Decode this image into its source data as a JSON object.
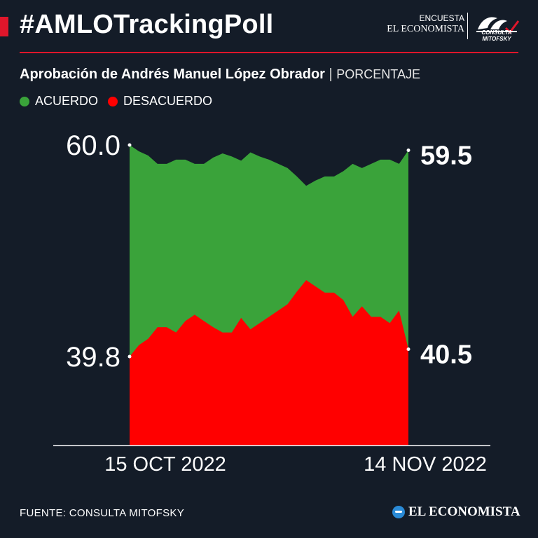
{
  "header": {
    "hashtag": "#AMLOTrackingPoll",
    "brand_top": "ENCUESTA",
    "brand_name": "EL ECONOMISTA",
    "partner_logo": "CONSULTA MITOFSKY"
  },
  "subtitle": {
    "title": "Aprobación de Andrés Manuel López Obrador",
    "separator": "|",
    "unit": "PORCENTAJE"
  },
  "colors": {
    "background": "#141c28",
    "agree": "#3aa33a",
    "disagree": "#ff0000",
    "accent": "#e0162b"
  },
  "chart_data": {
    "type": "area",
    "legend": [
      "ACUERDO",
      "DESACUERDO"
    ],
    "legend_placement": "top-left",
    "x_start_label": "15 OCT 2022",
    "x_end_label": "14 NOV 2022",
    "series": [
      {
        "name": "ACUERDO",
        "color": "#3aa33a",
        "values": [
          60.0,
          59.4,
          59.0,
          58.2,
          58.2,
          58.6,
          58.6,
          58.2,
          58.2,
          58.8,
          59.2,
          58.9,
          58.5,
          59.3,
          58.9,
          58.6,
          58.2,
          57.8,
          57.0,
          56.1,
          56.6,
          57.0,
          57.0,
          57.5,
          58.2,
          57.8,
          58.2,
          58.6,
          58.6,
          58.2,
          59.5
        ]
      },
      {
        "name": "DESACUERDO",
        "color": "#ff0000",
        "values": [
          39.8,
          40.9,
          41.5,
          42.6,
          42.6,
          42.1,
          43.2,
          43.8,
          43.2,
          42.6,
          42.1,
          42.1,
          43.5,
          42.4,
          43.0,
          43.6,
          44.2,
          44.8,
          46.0,
          47.1,
          46.5,
          45.9,
          45.9,
          45.2,
          43.6,
          44.6,
          43.6,
          43.6,
          43.0,
          44.2,
          40.5
        ]
      }
    ],
    "start_label": "60.0",
    "start_label_lower": "39.8",
    "end_label_upper": "59.5",
    "end_label_lower": "40.5"
  },
  "footer": {
    "source": "FUENTE: CONSULTA MITOFSKY",
    "logo": "EL ECONOMISTA"
  }
}
